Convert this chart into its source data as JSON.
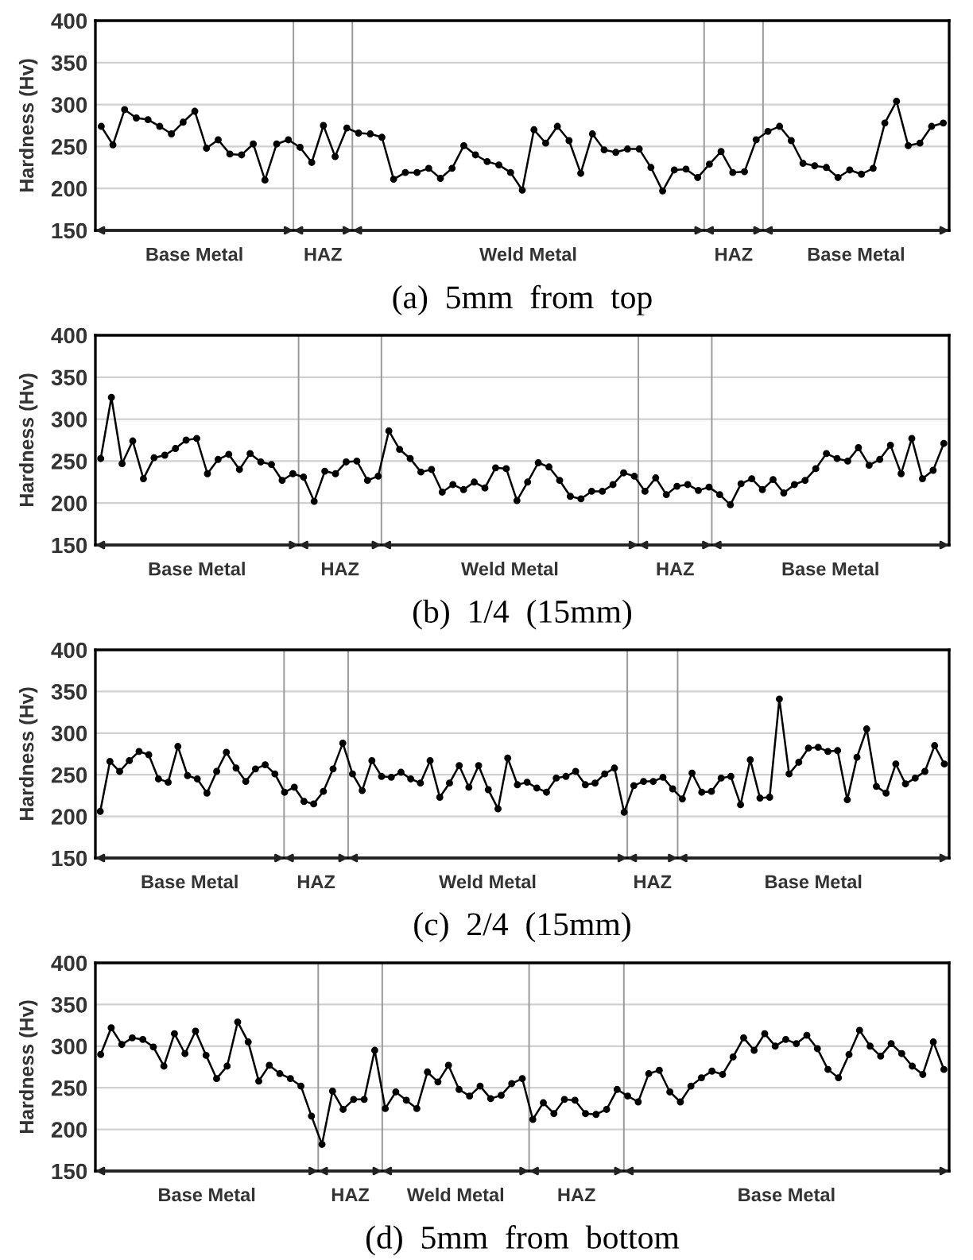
{
  "chart_data": [
    {
      "type": "line",
      "title": "(a)  5mm  from  top",
      "ylabel": "Hardness (Hv)",
      "ylim": [
        150,
        400
      ],
      "yticks": [
        150,
        200,
        250,
        300,
        350,
        400
      ],
      "grid": "y",
      "marker": "circle",
      "line_style": "solid",
      "tick_labels": "y",
      "categories": [
        null,
        null,
        null,
        null,
        null,
        null,
        null,
        null,
        null,
        null,
        null,
        null,
        null,
        null,
        null,
        null,
        null,
        null,
        null,
        null,
        null,
        null,
        null,
        null,
        null,
        null,
        null,
        null,
        null,
        null,
        null,
        null,
        null,
        null,
        null,
        null,
        null,
        null,
        null,
        null,
        null,
        null,
        null,
        null,
        null,
        null,
        null,
        null,
        null,
        null,
        null,
        null,
        null,
        null,
        null,
        null,
        null,
        null,
        null,
        null,
        null,
        null,
        null,
        null,
        null,
        null,
        null,
        null,
        null,
        null,
        null,
        null,
        null
      ],
      "series": [
        {
          "color": "#000000",
          "values": [
            274,
            252,
            294,
            284,
            282,
            274,
            265,
            279,
            292,
            248,
            258,
            241,
            240,
            253,
            210,
            253,
            258,
            249,
            231,
            275,
            238,
            272,
            266,
            265,
            261,
            211,
            219,
            219,
            224,
            212,
            224,
            251,
            240,
            232,
            228,
            219,
            198,
            270,
            254,
            274,
            257,
            218,
            265,
            246,
            243,
            247,
            247,
            225,
            197,
            222,
            223,
            213,
            229,
            244,
            219,
            220,
            258,
            268,
            274,
            257,
            230,
            227,
            225,
            213,
            222,
            217,
            224,
            278,
            304,
            251,
            254,
            274,
            278
          ]
        }
      ],
      "annotations": [
        "Base Metal",
        "HAZ",
        "Weld Metal",
        "HAZ",
        "Base Metal"
      ]
    },
    {
      "type": "line",
      "title": "(b)  1/4  (15mm)",
      "ylabel": "Hardness (Hv)",
      "ylim": [
        150,
        400
      ],
      "yticks": [
        150,
        200,
        250,
        300,
        350,
        400
      ],
      "grid": "y",
      "marker": "circle",
      "line_style": "solid",
      "tick_labels": "y",
      "categories": [
        null,
        null,
        null,
        null,
        null,
        null,
        null,
        null,
        null,
        null,
        null,
        null,
        null,
        null,
        null,
        null,
        null,
        null,
        null,
        null,
        null,
        null,
        null,
        null,
        null,
        null,
        null,
        null,
        null,
        null,
        null,
        null,
        null,
        null,
        null,
        null,
        null,
        null,
        null,
        null,
        null,
        null,
        null,
        null,
        null,
        null,
        null,
        null,
        null,
        null,
        null,
        null,
        null,
        null,
        null,
        null,
        null,
        null,
        null,
        null,
        null,
        null,
        null,
        null,
        null,
        null,
        null,
        null,
        null,
        null,
        null,
        null,
        null,
        null,
        null,
        null,
        null,
        null,
        null,
        null
      ],
      "series": [
        {
          "color": "#000000",
          "values": [
            253,
            326,
            247,
            274,
            229,
            254,
            257,
            265,
            275,
            277,
            235,
            252,
            258,
            240,
            259,
            249,
            246,
            227,
            235,
            231,
            202,
            238,
            235,
            249,
            250,
            227,
            232,
            286,
            264,
            253,
            237,
            240,
            213,
            222,
            216,
            225,
            218,
            242,
            241,
            203,
            225,
            248,
            243,
            227,
            208,
            205,
            214,
            214,
            222,
            236,
            232,
            214,
            230,
            210,
            220,
            222,
            215,
            219,
            210,
            198,
            223,
            229,
            216,
            228,
            212,
            222,
            227,
            241,
            259,
            253,
            250,
            266,
            245,
            252,
            269,
            235,
            277,
            229,
            239,
            271
          ]
        }
      ],
      "annotations": [
        "Base Metal",
        "HAZ",
        "Weld Metal",
        "HAZ",
        "Base Metal"
      ]
    },
    {
      "type": "line",
      "title": "(c)  2/4  (15mm)",
      "ylabel": "Hardness (Hv)",
      "ylim": [
        150,
        400
      ],
      "yticks": [
        150,
        200,
        250,
        300,
        350,
        400
      ],
      "grid": "y",
      "marker": "circle",
      "line_style": "solid",
      "tick_labels": "y",
      "categories": [
        null,
        null,
        null,
        null,
        null,
        null,
        null,
        null,
        null,
        null,
        null,
        null,
        null,
        null,
        null,
        null,
        null,
        null,
        null,
        null,
        null,
        null,
        null,
        null,
        null,
        null,
        null,
        null,
        null,
        null,
        null,
        null,
        null,
        null,
        null,
        null,
        null,
        null,
        null,
        null,
        null,
        null,
        null,
        null,
        null,
        null,
        null,
        null,
        null,
        null,
        null,
        null,
        null,
        null,
        null,
        null,
        null,
        null,
        null,
        null,
        null,
        null,
        null,
        null,
        null,
        null,
        null,
        null,
        null,
        null,
        null,
        null,
        null,
        null,
        null,
        null,
        null,
        null,
        null,
        null,
        null,
        null,
        null,
        null,
        null,
        null,
        null,
        null
      ],
      "series": [
        {
          "color": "#000000",
          "values": [
            206,
            266,
            254,
            267,
            278,
            274,
            245,
            241,
            284,
            249,
            245,
            228,
            254,
            277,
            258,
            242,
            257,
            262,
            251,
            229,
            235,
            218,
            215,
            230,
            257,
            288,
            251,
            231,
            267,
            248,
            247,
            253,
            245,
            240,
            267,
            223,
            240,
            261,
            235,
            261,
            232,
            209,
            270,
            238,
            241,
            234,
            229,
            246,
            248,
            254,
            238,
            240,
            251,
            258,
            205,
            237,
            242,
            242,
            247,
            233,
            221,
            252,
            229,
            230,
            246,
            248,
            214,
            268,
            222,
            223,
            341,
            251,
            265,
            282,
            283,
            278,
            279,
            220,
            271,
            305,
            236,
            228,
            263,
            239,
            246,
            254,
            285,
            263
          ]
        }
      ],
      "annotations": [
        "Base Metal",
        "HAZ",
        "Weld Metal",
        "HAZ",
        "Base Metal"
      ]
    },
    {
      "type": "line",
      "title": "(d)  5mm  from  bottom",
      "ylabel": "Hardness (Hv)",
      "ylim": [
        150,
        400
      ],
      "yticks": [
        150,
        200,
        250,
        300,
        350,
        400
      ],
      "grid": "y",
      "marker": "circle",
      "line_style": "solid",
      "tick_labels": "y",
      "categories": [
        null,
        null,
        null,
        null,
        null,
        null,
        null,
        null,
        null,
        null,
        null,
        null,
        null,
        null,
        null,
        null,
        null,
        null,
        null,
        null,
        null,
        null,
        null,
        null,
        null,
        null,
        null,
        null,
        null,
        null,
        null,
        null,
        null,
        null,
        null,
        null,
        null,
        null,
        null,
        null,
        null,
        null,
        null,
        null,
        null,
        null,
        null,
        null,
        null,
        null,
        null,
        null,
        null,
        null,
        null,
        null,
        null,
        null,
        null,
        null,
        null,
        null,
        null,
        null,
        null,
        null,
        null,
        null,
        null,
        null,
        null,
        null,
        null,
        null,
        null,
        null,
        null,
        null,
        null,
        null,
        null
      ],
      "series": [
        {
          "color": "#000000",
          "values": [
            290,
            322,
            302,
            310,
            308,
            299,
            276,
            315,
            291,
            318,
            289,
            261,
            276,
            329,
            305,
            258,
            277,
            267,
            261,
            252,
            216,
            182,
            246,
            224,
            236,
            236,
            295,
            225,
            245,
            235,
            225,
            269,
            257,
            277,
            248,
            240,
            252,
            237,
            241,
            255,
            261,
            212,
            232,
            219,
            236,
            235,
            219,
            218,
            224,
            248,
            240,
            233,
            267,
            271,
            245,
            233,
            252,
            262,
            270,
            266,
            287,
            310,
            295,
            315,
            300,
            308,
            303,
            313,
            297,
            272,
            262,
            290,
            319,
            300,
            288,
            303,
            291,
            276,
            266,
            305,
            272
          ]
        }
      ],
      "annotations": [
        "Base Metal",
        "HAZ",
        "Weld Metal",
        "HAZ",
        "Base Metal"
      ]
    }
  ]
}
